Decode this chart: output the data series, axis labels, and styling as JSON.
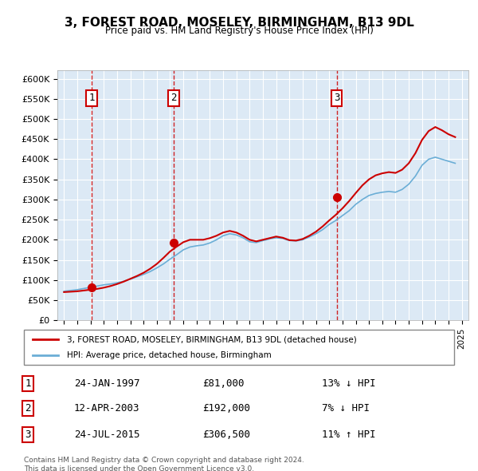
{
  "title": "3, FOREST ROAD, MOSELEY, BIRMINGHAM, B13 9DL",
  "subtitle": "Price paid vs. HM Land Registry's House Price Index (HPI)",
  "ylabel": "",
  "ylim": [
    0,
    620000
  ],
  "yticks": [
    0,
    50000,
    100000,
    150000,
    200000,
    250000,
    300000,
    350000,
    400000,
    450000,
    500000,
    550000,
    600000
  ],
  "xlim_start": 1994.5,
  "xlim_end": 2025.5,
  "background_color": "#dce9f5",
  "plot_bg_color": "#dce9f5",
  "grid_color": "#ffffff",
  "sale_dates": [
    1997.07,
    2003.28,
    2015.56
  ],
  "sale_prices": [
    81000,
    192000,
    306500
  ],
  "sale_labels": [
    "1",
    "2",
    "3"
  ],
  "legend_line1": "3, FOREST ROAD, MOSELEY, BIRMINGHAM, B13 9DL (detached house)",
  "legend_line2": "HPI: Average price, detached house, Birmingham",
  "table_rows": [
    [
      "1",
      "24-JAN-1997",
      "£81,000",
      "13% ↓ HPI"
    ],
    [
      "2",
      "12-APR-2003",
      "£192,000",
      "7% ↓ HPI"
    ],
    [
      "3",
      "24-JUL-2015",
      "£306,500",
      "11% ↑ HPI"
    ]
  ],
  "footer": "Contains HM Land Registry data © Crown copyright and database right 2024.\nThis data is licensed under the Open Government Licence v3.0.",
  "hpi_color": "#6baed6",
  "price_color": "#cc0000",
  "sale_marker_color": "#cc0000",
  "dashed_line_color": "#cc0000",
  "hpi_data_years": [
    1995,
    1995.5,
    1996,
    1996.5,
    1997,
    1997.5,
    1998,
    1998.5,
    1999,
    1999.5,
    2000,
    2000.5,
    2001,
    2001.5,
    2002,
    2002.5,
    2003,
    2003.5,
    2004,
    2004.5,
    2005,
    2005.5,
    2006,
    2006.5,
    2007,
    2007.5,
    2008,
    2008.5,
    2009,
    2009.5,
    2010,
    2010.5,
    2011,
    2011.5,
    2012,
    2012.5,
    2013,
    2013.5,
    2014,
    2014.5,
    2015,
    2015.5,
    2016,
    2016.5,
    2017,
    2017.5,
    2018,
    2018.5,
    2019,
    2019.5,
    2020,
    2020.5,
    2021,
    2021.5,
    2022,
    2022.5,
    2023,
    2023.5,
    2024,
    2024.5
  ],
  "hpi_values": [
    72000,
    74000,
    76000,
    79000,
    82000,
    85000,
    88000,
    90000,
    93000,
    97000,
    102000,
    108000,
    114000,
    121000,
    130000,
    140000,
    152000,
    163000,
    175000,
    182000,
    185000,
    187000,
    192000,
    200000,
    210000,
    215000,
    212000,
    205000,
    195000,
    193000,
    198000,
    202000,
    205000,
    203000,
    198000,
    197000,
    200000,
    207000,
    215000,
    225000,
    238000,
    248000,
    260000,
    272000,
    288000,
    300000,
    310000,
    315000,
    318000,
    320000,
    318000,
    325000,
    338000,
    358000,
    385000,
    400000,
    405000,
    400000,
    395000,
    390000
  ],
  "price_line_years": [
    1995,
    1995.5,
    1996,
    1996.5,
    1997,
    1997.5,
    1998,
    1998.5,
    1999,
    1999.5,
    2000,
    2000.5,
    2001,
    2001.5,
    2002,
    2002.5,
    2003,
    2003.5,
    2004,
    2004.5,
    2005,
    2005.5,
    2006,
    2006.5,
    2007,
    2007.5,
    2008,
    2008.5,
    2009,
    2009.5,
    2010,
    2010.5,
    2011,
    2011.5,
    2012,
    2012.5,
    2013,
    2013.5,
    2014,
    2014.5,
    2015,
    2015.5,
    2016,
    2016.5,
    2017,
    2017.5,
    2018,
    2018.5,
    2019,
    2019.5,
    2020,
    2020.5,
    2021,
    2021.5,
    2022,
    2022.5,
    2023,
    2023.5,
    2024,
    2024.5
  ],
  "price_line_values": [
    70000,
    71000,
    72000,
    74000,
    76000,
    78000,
    81000,
    85000,
    90000,
    96000,
    103000,
    110000,
    118000,
    128000,
    140000,
    155000,
    171000,
    183000,
    194000,
    200000,
    200000,
    200000,
    204000,
    210000,
    218000,
    222000,
    218000,
    210000,
    200000,
    196000,
    200000,
    204000,
    208000,
    205000,
    199000,
    198000,
    202000,
    210000,
    220000,
    233000,
    248000,
    262000,
    278000,
    296000,
    316000,
    335000,
    350000,
    360000,
    365000,
    368000,
    366000,
    374000,
    390000,
    415000,
    448000,
    470000,
    480000,
    472000,
    462000,
    455000
  ],
  "xtick_years": [
    1995,
    1996,
    1997,
    1998,
    1999,
    2000,
    2001,
    2002,
    2003,
    2004,
    2005,
    2006,
    2007,
    2008,
    2009,
    2010,
    2011,
    2012,
    2013,
    2014,
    2015,
    2016,
    2017,
    2018,
    2019,
    2020,
    2021,
    2022,
    2023,
    2024,
    2025
  ]
}
